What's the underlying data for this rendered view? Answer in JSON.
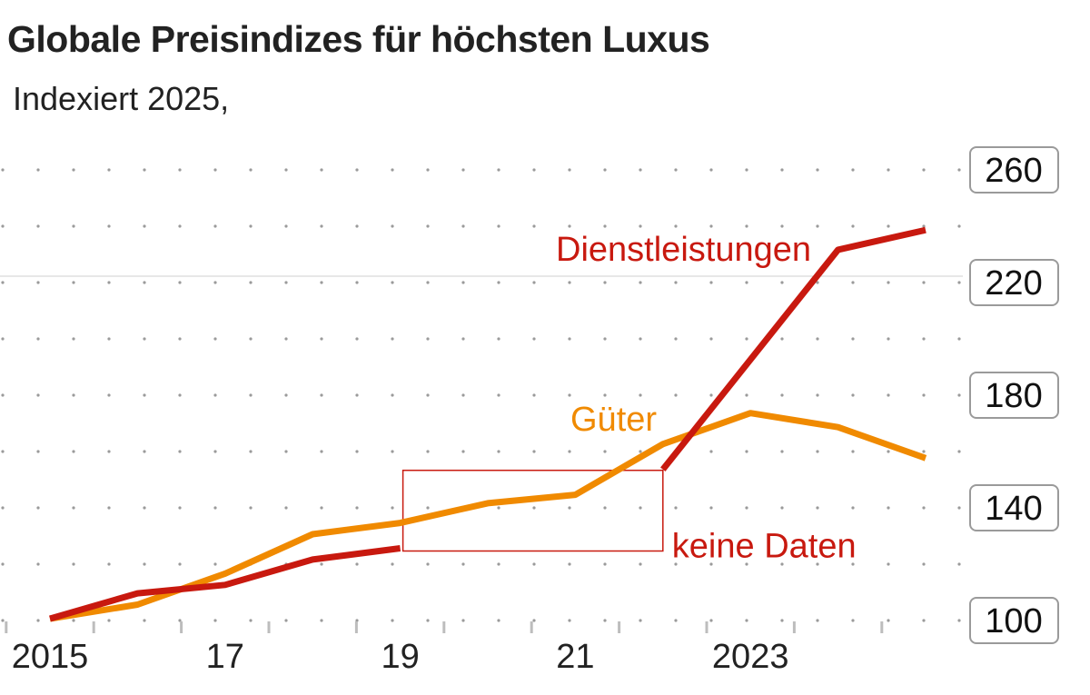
{
  "chart_data": {
    "type": "line",
    "title": "Globale Preisindizes für höchsten Luxus",
    "subtitle": "Indexiert 2025,",
    "x_tick_labels": [
      {
        "year": 2015,
        "label": "2015"
      },
      {
        "year": 2017,
        "label": "17"
      },
      {
        "year": 2019,
        "label": "19"
      },
      {
        "year": 2021,
        "label": "21"
      },
      {
        "year": 2023,
        "label": "2023"
      }
    ],
    "y_tick_labels": [
      "100",
      "140",
      "180",
      "220",
      "260"
    ],
    "y_ticks": [
      100,
      140,
      180,
      220,
      260
    ],
    "ylim": [
      100,
      260
    ],
    "xlim": [
      2014.5,
      2025.5
    ],
    "grid": "dotted horizontal every 20",
    "series": [
      {
        "name": "Dienstleistungen",
        "color": "#c8190f",
        "segments": [
          {
            "x": [
              2015,
              2016,
              2017,
              2018,
              2019
            ],
            "y": [
              100,
              109,
              112,
              121,
              125
            ]
          },
          {
            "x": [
              2022,
              2024,
              2025
            ],
            "y": [
              153,
              231,
              238
            ]
          }
        ]
      },
      {
        "name": "Güter",
        "color": "#f08a00",
        "segments": [
          {
            "x": [
              2015,
              2016,
              2017,
              2018,
              2019,
              2020,
              2021,
              2022,
              2023,
              2024,
              2025
            ],
            "y": [
              100,
              105,
              116,
              130,
              134,
              141,
              144,
              162,
              173,
              168,
              157
            ]
          }
        ]
      }
    ],
    "annotation": {
      "text": "keine Daten",
      "x_range": [
        2019,
        2022
      ],
      "y_range": [
        125,
        153
      ],
      "color": "#c8190f"
    }
  }
}
